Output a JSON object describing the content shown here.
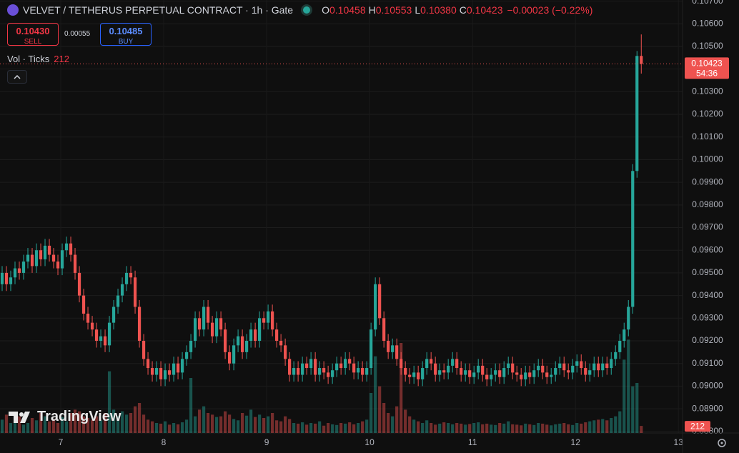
{
  "header": {
    "title": "VELVET / TETHERUS PERPETUAL CONTRACT · 1h · Gate",
    "ohlc": [
      {
        "label": "O",
        "value": "0.10458"
      },
      {
        "label": "H",
        "value": "0.10553"
      },
      {
        "label": "L",
        "value": "0.10380"
      },
      {
        "label": "C",
        "value": "0.10423"
      }
    ],
    "change": "−0.00023 (−0.22%)",
    "sell": {
      "price": "0.10430",
      "label": "SELL"
    },
    "spread": "0.00055",
    "buy": {
      "price": "0.10485",
      "label": "BUY"
    },
    "volume_legend": "Vol · Ticks"
  },
  "watermark": "TradingView",
  "countdown": "54:36",
  "chart_data": {
    "type": "candlestick",
    "up_color": "#26a69a",
    "down_color": "#ef5350",
    "xlim": [
      6.41,
      13.04
    ],
    "xticks": [
      7,
      8,
      9,
      10,
      11,
      12,
      13
    ],
    "ylim": [
      0.08793,
      0.10705
    ],
    "yticks": [
      {
        "value": 0.107,
        "label": "0.10700"
      },
      {
        "value": 0.106,
        "label": "0.10600"
      },
      {
        "value": 0.105,
        "label": "0.10500"
      },
      {
        "value": 0.104,
        "label": "0.10400"
      },
      {
        "value": 0.103,
        "label": "0.10300"
      },
      {
        "value": 0.102,
        "label": "0.10200"
      },
      {
        "value": 0.101,
        "label": "0.10100"
      },
      {
        "value": 0.1,
        "label": "0.10000"
      },
      {
        "value": 0.099,
        "label": "0.09900"
      },
      {
        "value": 0.098,
        "label": "0.09800"
      },
      {
        "value": 0.097,
        "label": "0.09700"
      },
      {
        "value": 0.096,
        "label": "0.09600"
      },
      {
        "value": 0.095,
        "label": "0.09500"
      },
      {
        "value": 0.094,
        "label": "0.09400"
      },
      {
        "value": 0.093,
        "label": "0.09300"
      },
      {
        "value": 0.092,
        "label": "0.09200"
      },
      {
        "value": 0.091,
        "label": "0.09100"
      },
      {
        "value": 0.09,
        "label": "0.09000"
      },
      {
        "value": 0.089,
        "label": "0.08900"
      },
      {
        "value": 0.088,
        "label": "0.08800"
      }
    ],
    "y2lim": [
      0,
      3000
    ],
    "open": [
      0.0945,
      0.095,
      0.0945,
      0.0948,
      0.0952,
      0.095,
      0.0955,
      0.0958,
      0.0953,
      0.096,
      0.0956,
      0.0962,
      0.0958,
      0.0955,
      0.0952,
      0.096,
      0.0963,
      0.0958,
      0.095,
      0.094,
      0.0932,
      0.0928,
      0.0925,
      0.092,
      0.0922,
      0.0918,
      0.0928,
      0.0935,
      0.094,
      0.0945,
      0.095,
      0.0948,
      0.0935,
      0.092,
      0.0912,
      0.0908,
      0.0905,
      0.0908,
      0.0903,
      0.0907,
      0.0905,
      0.091,
      0.0906,
      0.0912,
      0.0915,
      0.092,
      0.093,
      0.0925,
      0.0935,
      0.0928,
      0.0922,
      0.093,
      0.0925,
      0.0915,
      0.091,
      0.0918,
      0.0922,
      0.0915,
      0.092,
      0.0925,
      0.092,
      0.093,
      0.0928,
      0.0933,
      0.0925,
      0.092,
      0.0918,
      0.0912,
      0.0905,
      0.0908,
      0.0905,
      0.091,
      0.0908,
      0.0912,
      0.0905,
      0.0908,
      0.0906,
      0.0904,
      0.0907,
      0.091,
      0.0908,
      0.0912,
      0.091,
      0.0906,
      0.0908,
      0.0905,
      0.0908,
      0.0925,
      0.0945,
      0.093,
      0.092,
      0.0915,
      0.0918,
      0.0912,
      0.0908,
      0.0905,
      0.0904,
      0.0906,
      0.0903,
      0.0908,
      0.0912,
      0.091,
      0.0905,
      0.0907,
      0.0906,
      0.0909,
      0.0912,
      0.0908,
      0.0905,
      0.0907,
      0.0904,
      0.0906,
      0.0909,
      0.0905,
      0.0903,
      0.0905,
      0.0907,
      0.0904,
      0.0908,
      0.091,
      0.0906,
      0.0905,
      0.0903,
      0.0906,
      0.0904,
      0.0907,
      0.0909,
      0.0906,
      0.0904,
      0.0905,
      0.0908,
      0.091,
      0.0907,
      0.0906,
      0.0909,
      0.0911,
      0.0908,
      0.0905,
      0.0907,
      0.091,
      0.0907,
      0.091,
      0.0908,
      0.0912,
      0.0915,
      0.092,
      0.0925,
      0.0935,
      0.0995,
      0.10458
    ],
    "high": [
      0.0953,
      0.0953,
      0.0951,
      0.0955,
      0.0955,
      0.0958,
      0.0961,
      0.0961,
      0.0963,
      0.0963,
      0.0965,
      0.0965,
      0.0961,
      0.0958,
      0.0963,
      0.0966,
      0.0966,
      0.0961,
      0.0953,
      0.0943,
      0.0935,
      0.0931,
      0.0928,
      0.0925,
      0.0925,
      0.0931,
      0.0938,
      0.0943,
      0.0948,
      0.0953,
      0.0953,
      0.0951,
      0.0938,
      0.0923,
      0.0915,
      0.0911,
      0.0911,
      0.0911,
      0.091,
      0.091,
      0.0913,
      0.0913,
      0.0915,
      0.0918,
      0.0923,
      0.0933,
      0.0933,
      0.0938,
      0.0938,
      0.0931,
      0.0933,
      0.0933,
      0.0928,
      0.0918,
      0.0921,
      0.0925,
      0.0925,
      0.0923,
      0.0928,
      0.0928,
      0.0933,
      0.0933,
      0.0936,
      0.0936,
      0.0928,
      0.0923,
      0.0921,
      0.0915,
      0.0911,
      0.0911,
      0.0913,
      0.0913,
      0.0915,
      0.0915,
      0.0911,
      0.0911,
      0.0909,
      0.091,
      0.0913,
      0.0913,
      0.0915,
      0.0915,
      0.0913,
      0.0911,
      0.0911,
      0.0911,
      0.0928,
      0.0948,
      0.0948,
      0.0933,
      0.0923,
      0.0921,
      0.0921,
      0.0915,
      0.0911,
      0.0908,
      0.0909,
      0.0909,
      0.0911,
      0.0915,
      0.0915,
      0.0913,
      0.091,
      0.091,
      0.0912,
      0.0915,
      0.0915,
      0.0911,
      0.091,
      0.091,
      0.0909,
      0.0912,
      0.0912,
      0.0908,
      0.0908,
      0.091,
      0.091,
      0.0911,
      0.0913,
      0.0913,
      0.0909,
      0.0908,
      0.0909,
      0.0909,
      0.091,
      0.0912,
      0.0912,
      0.0909,
      0.0908,
      0.0911,
      0.0913,
      0.0913,
      0.091,
      0.0912,
      0.0914,
      0.0914,
      0.0911,
      0.091,
      0.0913,
      0.0913,
      0.0913,
      0.0913,
      0.0915,
      0.0918,
      0.0923,
      0.0928,
      0.0938,
      0.0998,
      0.1048,
      0.10553
    ],
    "low": [
      0.0942,
      0.0942,
      0.0942,
      0.0945,
      0.0947,
      0.0947,
      0.0952,
      0.095,
      0.095,
      0.0953,
      0.0953,
      0.0955,
      0.0952,
      0.0949,
      0.0949,
      0.0957,
      0.0955,
      0.0947,
      0.0937,
      0.0929,
      0.0925,
      0.0922,
      0.0917,
      0.0917,
      0.0915,
      0.0915,
      0.0925,
      0.0932,
      0.0937,
      0.0942,
      0.0945,
      0.0932,
      0.0917,
      0.0909,
      0.0905,
      0.0902,
      0.0902,
      0.09,
      0.09,
      0.0902,
      0.0902,
      0.0903,
      0.0903,
      0.0909,
      0.0912,
      0.0917,
      0.0922,
      0.0922,
      0.0925,
      0.0919,
      0.0919,
      0.0922,
      0.0912,
      0.0907,
      0.0907,
      0.0915,
      0.0912,
      0.0912,
      0.0917,
      0.0917,
      0.0917,
      0.0925,
      0.0925,
      0.0922,
      0.0917,
      0.0915,
      0.0909,
      0.0902,
      0.0902,
      0.0902,
      0.0902,
      0.0905,
      0.0905,
      0.0902,
      0.0902,
      0.0903,
      0.0901,
      0.0901,
      0.0904,
      0.0905,
      0.0905,
      0.0907,
      0.0903,
      0.0903,
      0.0902,
      0.0902,
      0.0905,
      0.0922,
      0.0927,
      0.0917,
      0.0912,
      0.0912,
      0.0909,
      0.0905,
      0.0902,
      0.0901,
      0.0901,
      0.09,
      0.09,
      0.0905,
      0.0907,
      0.0902,
      0.0902,
      0.0903,
      0.0903,
      0.0906,
      0.0905,
      0.0902,
      0.0902,
      0.0901,
      0.0901,
      0.0903,
      0.0902,
      0.09,
      0.09,
      0.0902,
      0.0901,
      0.0901,
      0.0905,
      0.0903,
      0.0902,
      0.09,
      0.09,
      0.0901,
      0.0901,
      0.0904,
      0.0903,
      0.0901,
      0.0901,
      0.0902,
      0.0905,
      0.0904,
      0.0903,
      0.0903,
      0.0906,
      0.0905,
      0.0902,
      0.0902,
      0.0904,
      0.0904,
      0.0904,
      0.0905,
      0.0905,
      0.0909,
      0.0912,
      0.0917,
      0.0922,
      0.0932,
      0.0992,
      0.1038
    ],
    "close": [
      0.095,
      0.0945,
      0.0948,
      0.0952,
      0.095,
      0.0955,
      0.0958,
      0.0953,
      0.096,
      0.0956,
      0.0962,
      0.0958,
      0.0955,
      0.0952,
      0.096,
      0.0963,
      0.0958,
      0.095,
      0.094,
      0.0932,
      0.0928,
      0.0925,
      0.092,
      0.0922,
      0.0918,
      0.0928,
      0.0935,
      0.094,
      0.0945,
      0.095,
      0.0948,
      0.0935,
      0.092,
      0.0912,
      0.0908,
      0.0905,
      0.0908,
      0.0903,
      0.0907,
      0.0905,
      0.091,
      0.0906,
      0.0912,
      0.0915,
      0.092,
      0.093,
      0.0925,
      0.0935,
      0.0928,
      0.0922,
      0.093,
      0.0925,
      0.0915,
      0.091,
      0.0918,
      0.0922,
      0.0915,
      0.092,
      0.0925,
      0.092,
      0.093,
      0.0928,
      0.0933,
      0.0925,
      0.092,
      0.0918,
      0.0912,
      0.0905,
      0.0908,
      0.0905,
      0.091,
      0.0908,
      0.0912,
      0.0905,
      0.0908,
      0.0906,
      0.0904,
      0.0907,
      0.091,
      0.0908,
      0.0912,
      0.091,
      0.0906,
      0.0908,
      0.0905,
      0.0908,
      0.0925,
      0.0945,
      0.093,
      0.092,
      0.0915,
      0.0918,
      0.0912,
      0.0908,
      0.0905,
      0.0904,
      0.0906,
      0.0903,
      0.0908,
      0.0912,
      0.091,
      0.0905,
      0.0907,
      0.0906,
      0.0909,
      0.0912,
      0.0908,
      0.0905,
      0.0907,
      0.0904,
      0.0906,
      0.0909,
      0.0905,
      0.0903,
      0.0905,
      0.0907,
      0.0904,
      0.0908,
      0.091,
      0.0906,
      0.0905,
      0.0903,
      0.0906,
      0.0904,
      0.0907,
      0.0909,
      0.0906,
      0.0904,
      0.0905,
      0.0908,
      0.091,
      0.0907,
      0.0906,
      0.0909,
      0.0911,
      0.0908,
      0.0905,
      0.0907,
      0.091,
      0.0907,
      0.091,
      0.0908,
      0.0912,
      0.0915,
      0.092,
      0.0925,
      0.0935,
      0.0995,
      0.10458,
      0.10423
    ],
    "volume": [
      400,
      550,
      300,
      350,
      500,
      250,
      300,
      450,
      380,
      600,
      500,
      350,
      420,
      300,
      480,
      350,
      600,
      700,
      650,
      500,
      450,
      400,
      500,
      380,
      600,
      1850,
      700,
      500,
      650,
      550,
      600,
      800,
      900,
      550,
      400,
      350,
      300,
      280,
      350,
      250,
      300,
      260,
      320,
      400,
      1650,
      500,
      700,
      800,
      600,
      550,
      480,
      500,
      650,
      550,
      420,
      380,
      600,
      520,
      700,
      480,
      550,
      450,
      500,
      600,
      380,
      350,
      500,
      420,
      300,
      280,
      320,
      250,
      300,
      280,
      350,
      220,
      300,
      260,
      240,
      300,
      280,
      320,
      260,
      300,
      350,
      400,
      1200,
      2300,
      1400,
      900,
      600,
      500,
      800,
      2700,
      700,
      500,
      400,
      350,
      300,
      380,
      300,
      250,
      280,
      320,
      300,
      260,
      300,
      280,
      250,
      270,
      300,
      320,
      260,
      280,
      250,
      240,
      300,
      280,
      350,
      260,
      250,
      230,
      280,
      260,
      240,
      300,
      280,
      250,
      230,
      260,
      280,
      300,
      260,
      240,
      300,
      280,
      320,
      350,
      380,
      400,
      420,
      380,
      450,
      500,
      650,
      2200,
      2800,
      1400,
      1500,
      212
    ]
  }
}
